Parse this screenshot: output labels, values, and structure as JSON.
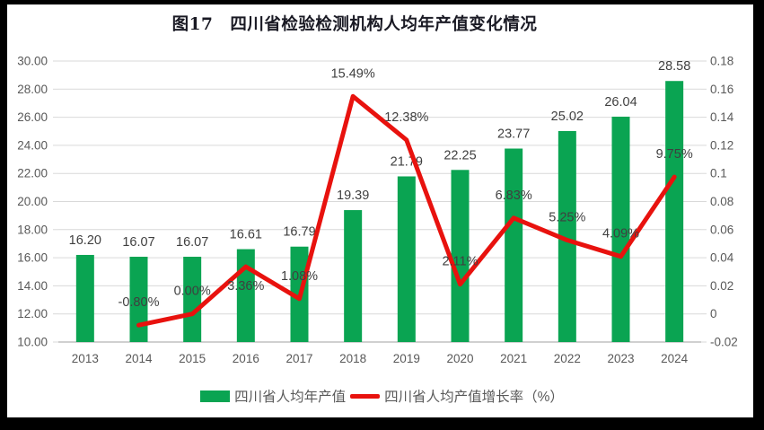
{
  "title": "图17　四川省检验检测机构人均年产值变化情况",
  "colors": {
    "bar": "#0AA452",
    "line": "#E8120E",
    "grid": "#D9D9D9",
    "axis_line": "#C0C0C0",
    "tick_text": "#595959",
    "data_label": "#3F3F3F",
    "title_text": "#1A1A24",
    "legend_text": "#595959",
    "frame": "#000000",
    "background": "#FFFFFF"
  },
  "chart_data": {
    "type": "combo",
    "categories": [
      "2013",
      "2014",
      "2015",
      "2016",
      "2017",
      "2018",
      "2019",
      "2020",
      "2021",
      "2022",
      "2023",
      "2024"
    ],
    "series": [
      {
        "name": "四川省人均年产值",
        "type": "bar",
        "axis": "left",
        "color": "#0AA452",
        "values": [
          16.2,
          16.07,
          16.07,
          16.61,
          16.79,
          19.39,
          21.79,
          22.25,
          23.77,
          25.02,
          26.04,
          28.58
        ],
        "labels": [
          "16.20",
          "16.07",
          "16.07",
          "16.61",
          "16.79",
          "19.39",
          "21.79",
          "22.25",
          "23.77",
          "25.02",
          "26.04",
          "28.58"
        ]
      },
      {
        "name": "四川省人均产值增长率（%）",
        "type": "line",
        "axis": "right",
        "color": "#E8120E",
        "values": [
          null,
          -0.008,
          0.0,
          0.0336,
          0.0108,
          0.1549,
          0.1238,
          0.0211,
          0.0683,
          0.0525,
          0.0409,
          0.0975
        ],
        "labels": [
          null,
          "-0.80%",
          "0.00%",
          "3.36%",
          "1.08%",
          "15.49%",
          "12.38%",
          "2.11%",
          "6.83%",
          "5.25%",
          "4.09%",
          "9.75%"
        ]
      }
    ],
    "left_axis": {
      "min": 10,
      "max": 30,
      "step": 2,
      "tick_labels": [
        "30.00",
        "28.00",
        "26.00",
        "24.00",
        "22.00",
        "20.00",
        "18.00",
        "16.00",
        "14.00",
        "12.00",
        "10.00"
      ]
    },
    "right_axis": {
      "min": -0.02,
      "max": 0.18,
      "step": 0.02,
      "tick_labels": [
        "0.18",
        "0.16",
        "0.14",
        "0.12",
        "0.1",
        "0.08",
        "0.06",
        "0.04",
        "0.02",
        "0",
        "-0.02"
      ]
    },
    "grid": true,
    "legend_position": "bottom"
  }
}
